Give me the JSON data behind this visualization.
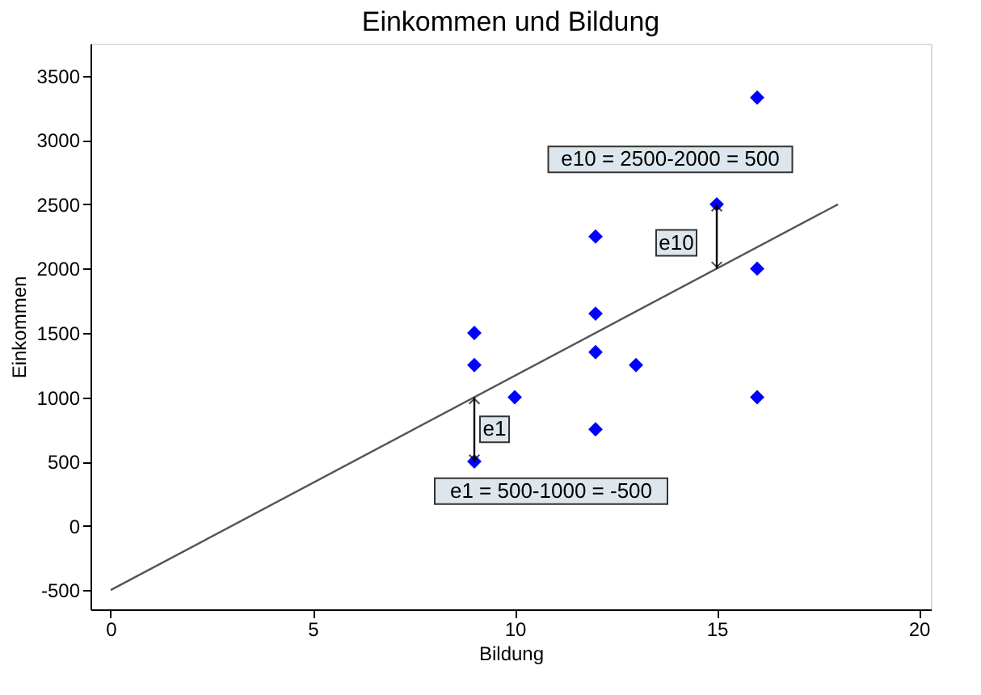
{
  "chart_data": {
    "type": "scatter",
    "title": "Einkommen und Bildung",
    "xlabel": "Bildung",
    "ylabel": "Einkommen",
    "xlim": [
      -0.5,
      20.3
    ],
    "xticks": [
      0,
      5,
      10,
      15,
      20
    ],
    "ylim": [
      -650,
      3750
    ],
    "yticks": [
      -500,
      0,
      500,
      1000,
      1500,
      2000,
      2500,
      3000,
      3500
    ],
    "grid": false,
    "marker": "diamond",
    "series": [
      {
        "color": "#0000ff",
        "x": [
          9,
          9,
          9,
          10,
          12,
          12,
          12,
          12,
          13,
          15,
          16,
          16,
          16
        ],
        "values": [
          1500,
          1250,
          500,
          1000,
          2250,
          1650,
          1350,
          750,
          1250,
          2500,
          3330,
          2000,
          1000
        ]
      },
      {
        "type": "line",
        "color": "#555555",
        "marker": "none",
        "x": [
          0,
          18
        ],
        "values": [
          -500,
          2500
        ]
      }
    ],
    "annotations": [
      {
        "text": "e1",
        "x": 9,
        "y": 500
      },
      {
        "text": "e10",
        "x": 15,
        "y": 2500
      },
      "e1 = 500-1000 = -500",
      "e10 = 2500-2000 = 500"
    ]
  }
}
